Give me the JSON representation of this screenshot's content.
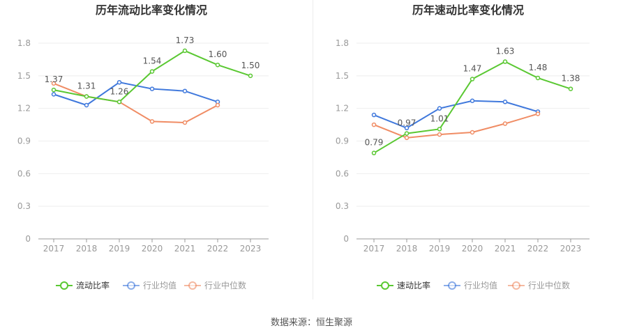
{
  "source": "数据来源：恒生聚源",
  "chart_data": [
    {
      "type": "line",
      "title": "历年流动比率变化情况",
      "categories": [
        "2017",
        "2018",
        "2019",
        "2020",
        "2021",
        "2022",
        "2023"
      ],
      "ylim": [
        0,
        1.8
      ],
      "yticks": [
        "0",
        "0.3",
        "0.6",
        "0.9",
        "1.2",
        "1.5",
        "1.8"
      ],
      "grid": true,
      "legend_position": "bottom",
      "series": [
        {
          "name": "流动比率",
          "color": "#5ac832",
          "values": [
            1.37,
            1.31,
            1.26,
            1.54,
            1.73,
            1.6,
            1.5
          ],
          "labels": [
            "1.37",
            "1.31",
            "1.26",
            "1.54",
            "1.73",
            "1.60",
            "1.50"
          ]
        },
        {
          "name": "行业均值",
          "color": "#3f78dc",
          "values": [
            1.33,
            1.23,
            1.44,
            1.38,
            1.36,
            1.26,
            null
          ]
        },
        {
          "name": "行业中位数",
          "color": "#f08c64",
          "values": [
            1.43,
            1.31,
            1.26,
            1.08,
            1.07,
            1.23,
            null
          ]
        }
      ]
    },
    {
      "type": "line",
      "title": "历年速动比率变化情况",
      "categories": [
        "2017",
        "2018",
        "2019",
        "2020",
        "2021",
        "2022",
        "2023"
      ],
      "ylim": [
        0,
        1.8
      ],
      "yticks": [
        "0",
        "0.3",
        "0.6",
        "0.9",
        "1.2",
        "1.5",
        "1.8"
      ],
      "grid": true,
      "legend_position": "bottom",
      "series": [
        {
          "name": "速动比率",
          "color": "#5ac832",
          "values": [
            0.79,
            0.97,
            1.01,
            1.47,
            1.63,
            1.48,
            1.38
          ],
          "labels": [
            "0.79",
            "0.97",
            "1.01",
            "1.47",
            "1.63",
            "1.48",
            "1.38"
          ]
        },
        {
          "name": "行业均值",
          "color": "#3f78dc",
          "values": [
            1.14,
            1.02,
            1.2,
            1.27,
            1.26,
            1.17,
            null
          ]
        },
        {
          "name": "行业中位数",
          "color": "#f08c64",
          "values": [
            1.05,
            0.93,
            0.96,
            0.98,
            1.06,
            1.15,
            null
          ]
        }
      ]
    }
  ]
}
